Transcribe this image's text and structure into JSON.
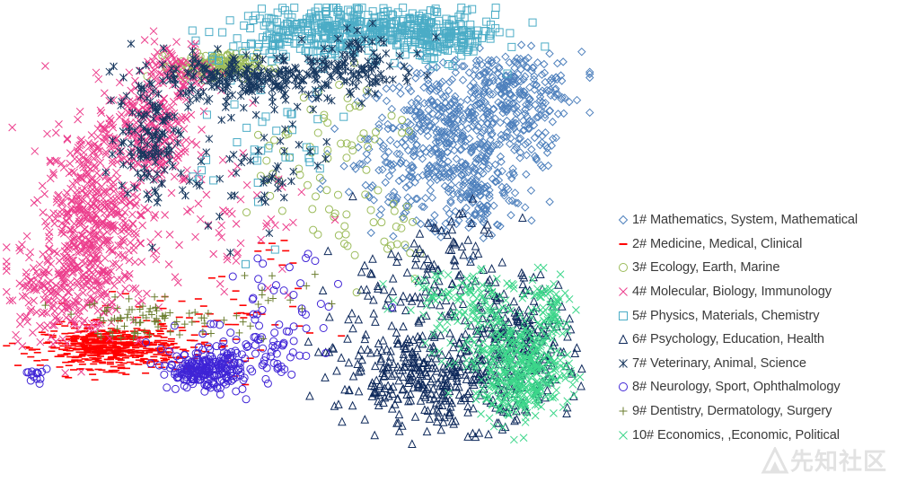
{
  "chart_data": {
    "type": "scatter",
    "title": "",
    "xlabel": "",
    "ylabel": "",
    "axes_visible": false,
    "grid": false,
    "legend_position": "right",
    "xlim": [
      0,
      100
    ],
    "ylim": [
      0,
      100
    ],
    "series": [
      {
        "name": "1# Mathematics, System, Mathematical",
        "marker": "diamond",
        "color": "#4f81bd",
        "clusters": [
          {
            "x": 75,
            "y": 72,
            "n": 420,
            "sx": 6.5,
            "sy": 7
          },
          {
            "x": 86,
            "y": 83,
            "n": 180,
            "sx": 6,
            "sy": 3.5
          },
          {
            "x": 80,
            "y": 60,
            "n": 140,
            "sx": 4,
            "sy": 5
          },
          {
            "x": 88,
            "y": 75,
            "n": 90,
            "sx": 3,
            "sy": 5
          },
          {
            "x": 65,
            "y": 60,
            "n": 40,
            "sx": 5,
            "sy": 6
          }
        ]
      },
      {
        "name": "2# Medicine, Medical, Clinical",
        "marker": "dash",
        "color": "#ff0000",
        "clusters": [
          {
            "x": 18,
            "y": 27,
            "n": 520,
            "sx": 5.5,
            "sy": 2.2
          },
          {
            "x": 28,
            "y": 30,
            "n": 60,
            "sx": 6,
            "sy": 5
          },
          {
            "x": 40,
            "y": 33,
            "n": 30,
            "sx": 8,
            "sy": 6
          },
          {
            "x": 45,
            "y": 46,
            "n": 10,
            "sx": 3,
            "sy": 3
          }
        ]
      },
      {
        "name": "3# Ecology, Earth, Marine",
        "marker": "circle",
        "color": "#9bbb59",
        "clusters": [
          {
            "x": 36,
            "y": 87,
            "n": 160,
            "sx": 3.5,
            "sy": 1.4
          },
          {
            "x": 57,
            "y": 75,
            "n": 35,
            "sx": 6,
            "sy": 6
          },
          {
            "x": 63,
            "y": 53,
            "n": 35,
            "sx": 6,
            "sy": 6
          },
          {
            "x": 48,
            "y": 66,
            "n": 20,
            "sx": 6,
            "sy": 6
          }
        ]
      },
      {
        "name": "4# Molecular, Biology, Immunology",
        "marker": "x",
        "color": "#ec3d8c",
        "clusters": [
          {
            "x": 15,
            "y": 55,
            "n": 420,
            "sx": 4,
            "sy": 9
          },
          {
            "x": 24,
            "y": 73,
            "n": 260,
            "sx": 4,
            "sy": 6
          },
          {
            "x": 10,
            "y": 40,
            "n": 220,
            "sx": 5,
            "sy": 6
          },
          {
            "x": 30,
            "y": 86,
            "n": 90,
            "sx": 3,
            "sy": 3
          },
          {
            "x": 35,
            "y": 52,
            "n": 80,
            "sx": 9,
            "sy": 10
          }
        ]
      },
      {
        "name": "5# Physics, Materials, Chemistry",
        "marker": "square",
        "color": "#4bacc6",
        "clusters": [
          {
            "x": 60,
            "y": 95,
            "n": 320,
            "sx": 10,
            "sy": 2.2
          },
          {
            "x": 74,
            "y": 93,
            "n": 150,
            "sx": 4.5,
            "sy": 2.5
          },
          {
            "x": 52,
            "y": 92,
            "n": 80,
            "sx": 6,
            "sy": 3
          },
          {
            "x": 44,
            "y": 70,
            "n": 40,
            "sx": 7,
            "sy": 9
          }
        ]
      },
      {
        "name": "6# Psychology, Education, Health",
        "marker": "triangle",
        "color": "#0f2a5c",
        "clusters": [
          {
            "x": 75,
            "y": 20,
            "n": 380,
            "sx": 9,
            "sy": 5
          },
          {
            "x": 88,
            "y": 31,
            "n": 160,
            "sx": 4,
            "sy": 6
          },
          {
            "x": 68,
            "y": 35,
            "n": 110,
            "sx": 7,
            "sy": 8
          },
          {
            "x": 76,
            "y": 48,
            "n": 50,
            "sx": 5,
            "sy": 5
          }
        ]
      },
      {
        "name": "7# Veterinary, Animal, Science",
        "marker": "asterisk",
        "color": "#17375e",
        "clusters": [
          {
            "x": 42,
            "y": 84,
            "n": 240,
            "sx": 10,
            "sy": 2.4
          },
          {
            "x": 25,
            "y": 72,
            "n": 120,
            "sx": 3,
            "sy": 7
          },
          {
            "x": 61,
            "y": 88,
            "n": 80,
            "sx": 5,
            "sy": 3
          },
          {
            "x": 44,
            "y": 64,
            "n": 50,
            "sx": 7,
            "sy": 6
          }
        ]
      },
      {
        "name": "8# Neurology, Sport, Ophthalmology",
        "marker": "circle",
        "color": "#3f24d6",
        "clusters": [
          {
            "x": 34,
            "y": 22,
            "n": 200,
            "sx": 3,
            "sy": 1.8
          },
          {
            "x": 42,
            "y": 25,
            "n": 90,
            "sx": 6,
            "sy": 4
          },
          {
            "x": 5,
            "y": 21,
            "n": 14,
            "sx": 1.2,
            "sy": 1
          },
          {
            "x": 48,
            "y": 35,
            "n": 30,
            "sx": 5,
            "sy": 7
          }
        ]
      },
      {
        "name": "9# Dentistry, Dermatology, Surgery",
        "marker": "plus",
        "color": "#6b7d2f",
        "clusters": [
          {
            "x": 25,
            "y": 33,
            "n": 80,
            "sx": 8,
            "sy": 2
          },
          {
            "x": 47,
            "y": 38,
            "n": 12,
            "sx": 4,
            "sy": 3
          }
        ]
      },
      {
        "name": "10# Economics, ,Economic, Political",
        "marker": "x",
        "color": "#3cd68a",
        "clusters": [
          {
            "x": 88,
            "y": 22,
            "n": 380,
            "sx": 4,
            "sy": 5
          },
          {
            "x": 78,
            "y": 39,
            "n": 90,
            "sx": 5,
            "sy": 3
          },
          {
            "x": 92,
            "y": 35,
            "n": 60,
            "sx": 2,
            "sy": 4
          },
          {
            "x": 80,
            "y": 30,
            "n": 50,
            "sx": 4,
            "sy": 4
          }
        ]
      }
    ]
  },
  "watermark": {
    "text": "先知社区",
    "icon": "logo-mark-icon"
  }
}
